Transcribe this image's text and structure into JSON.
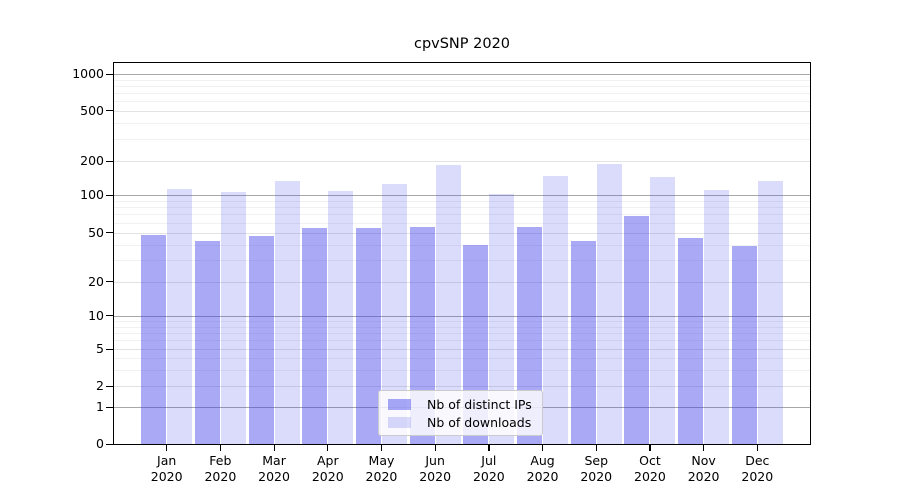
{
  "title": "cpvSNP 2020",
  "chart_data": {
    "type": "bar",
    "title": "cpvSNP 2020",
    "xlabel": "",
    "ylabel": "",
    "categories": [
      "Jan 2020",
      "Feb 2020",
      "Mar 2020",
      "Apr 2020",
      "May 2020",
      "Jun 2020",
      "Jul 2020",
      "Aug 2020",
      "Sep 2020",
      "Oct 2020",
      "Nov 2020",
      "Dec 2020"
    ],
    "series": [
      {
        "name": "Nb of distinct IPs",
        "color": "#a6a6f2",
        "fill": "rgba(60,60,235,0.44)",
        "values": [
          48,
          43,
          47,
          55,
          55,
          56,
          40,
          56,
          43,
          68,
          45,
          39
        ]
      },
      {
        "name": "Nb of downloads",
        "color": "#d9d9f8",
        "fill": "rgba(60,60,235,0.185)",
        "values": [
          112,
          106,
          134,
          109,
          124,
          184,
          102,
          147,
          188,
          145,
          111,
          133
        ]
      }
    ],
    "y_axis": {
      "scale": "symlog",
      "tick_labels": [
        "0",
        "1",
        "2",
        "5",
        "10",
        "20",
        "50",
        "100",
        "200",
        "500",
        "1000"
      ],
      "tick_values": [
        0,
        1,
        2,
        5,
        10,
        20,
        50,
        100,
        200,
        500,
        1000
      ],
      "minor_gridline_values": [
        3,
        4,
        6,
        7,
        8,
        9,
        30,
        40,
        60,
        70,
        80,
        90,
        300,
        400,
        600,
        700,
        800,
        900
      ],
      "decade_values": [
        1,
        10,
        100,
        1000
      ],
      "ylim": [
        0,
        1200
      ]
    },
    "grid": true,
    "legend": {
      "position": "lower-center",
      "entries": [
        "Nb of distinct IPs",
        "Nb of downloads"
      ]
    },
    "colors": {
      "grid_decade": "#a8a8a8",
      "grid_labeled": "#e3e3e3",
      "grid_minor": "#f1f1f1",
      "axis": "#000000"
    }
  }
}
